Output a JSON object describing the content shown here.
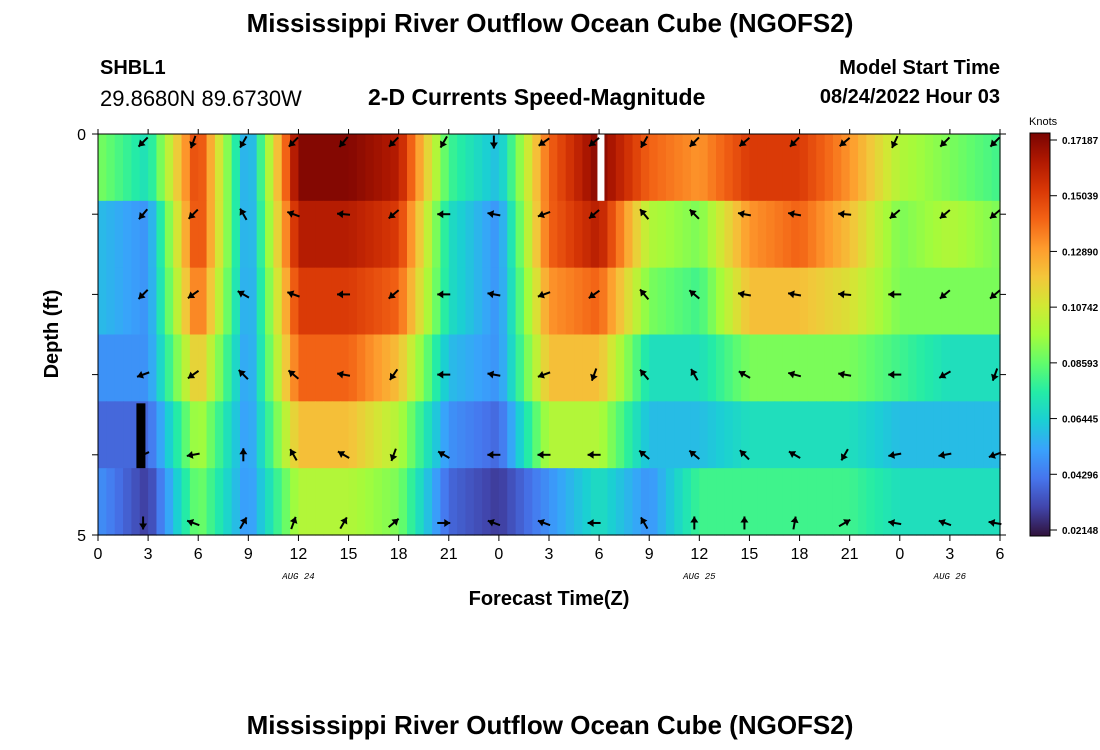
{
  "header": {
    "title": "Mississippi River Outflow Ocean Cube (NGOFS2)",
    "station_id": "SHBL1",
    "station_coords": "29.8680N  89.6730W",
    "plot_subtitle": "2-D Currents Speed-Magnitude",
    "model_start_label": "Model Start Time",
    "model_start_value": "08/24/2022 Hour 03"
  },
  "footer": {
    "title": "Mississippi River Outflow Ocean Cube (NGOFS2)"
  },
  "chart_data": {
    "type": "heatmap",
    "xlabel": "Forecast Time(Z)",
    "ylabel": "Depth (ft)",
    "x_ticks": [
      "0",
      "3",
      "6",
      "9",
      "12",
      "15",
      "18",
      "21",
      "0",
      "3",
      "6",
      "9",
      "12",
      "15",
      "18",
      "21",
      "0",
      "3",
      "6"
    ],
    "date_labels": [
      {
        "label": "AUG 24",
        "hour": 12
      },
      {
        "label": "AUG 25",
        "hour": 36
      },
      {
        "label": "AUG 26",
        "hour": 51
      }
    ],
    "y_ticks": [
      "0",
      "5"
    ],
    "ylim": [
      0,
      5
    ],
    "xlim": [
      0,
      54
    ],
    "colorbar": {
      "units": "Knots",
      "ticks": [
        "0.17187",
        "0.15039",
        "0.12890",
        "0.10742",
        "0.08593",
        "0.06445",
        "0.04296",
        "0.02148"
      ],
      "min": 0.02148,
      "max": 0.17187,
      "colors": [
        "#30123b",
        "#4145ab",
        "#4675ed",
        "#39a2fc",
        "#1bcfd4",
        "#24eca6",
        "#61fc6c",
        "#a4fc3b",
        "#d1e834",
        "#f3c63a",
        "#fe9b2d",
        "#f36315",
        "#d93806",
        "#b11901",
        "#7a0402"
      ]
    },
    "depth_levels": [
      0,
      1,
      2,
      3,
      4,
      5
    ],
    "series": [
      {
        "depth": 0,
        "hours": [
          0,
          3,
          6,
          9,
          12,
          15,
          18,
          21,
          24,
          27,
          30,
          33,
          36,
          39,
          42,
          45,
          48,
          51,
          54
        ],
        "speed": [
          0.09,
          0.07,
          0.15,
          0.05,
          0.17,
          0.17,
          0.16,
          0.08,
          0.06,
          0.14,
          0.17,
          0.14,
          0.13,
          0.15,
          0.15,
          0.13,
          0.1,
          0.09,
          0.08
        ]
      },
      {
        "depth": 1,
        "hours": [
          0,
          3,
          6,
          9,
          12,
          15,
          18,
          21,
          24,
          27,
          30,
          33,
          36,
          39,
          42,
          45,
          48,
          51,
          54
        ],
        "speed": [
          0.06,
          0.05,
          0.15,
          0.05,
          0.16,
          0.16,
          0.15,
          0.07,
          0.05,
          0.14,
          0.16,
          0.1,
          0.09,
          0.13,
          0.14,
          0.12,
          0.09,
          0.1,
          0.09
        ]
      },
      {
        "depth": 2,
        "hours": [
          0,
          3,
          6,
          9,
          12,
          15,
          18,
          21,
          24,
          27,
          30,
          33,
          36,
          39,
          42,
          45,
          48,
          51,
          54
        ],
        "speed": [
          0.06,
          0.05,
          0.14,
          0.05,
          0.15,
          0.15,
          0.14,
          0.07,
          0.05,
          0.13,
          0.14,
          0.09,
          0.08,
          0.12,
          0.12,
          0.11,
          0.09,
          0.09,
          0.09
        ]
      },
      {
        "depth": 3,
        "hours": [
          0,
          3,
          6,
          9,
          12,
          15,
          18,
          21,
          24,
          27,
          30,
          33,
          36,
          39,
          42,
          45,
          48,
          51,
          54
        ],
        "speed": [
          0.05,
          0.05,
          0.12,
          0.05,
          0.14,
          0.14,
          0.12,
          0.06,
          0.05,
          0.12,
          0.12,
          0.07,
          0.07,
          0.09,
          0.09,
          0.09,
          0.08,
          0.07,
          0.07
        ]
      },
      {
        "depth": 4,
        "hours": [
          0,
          3,
          6,
          9,
          12,
          15,
          18,
          21,
          24,
          27,
          30,
          33,
          36,
          39,
          42,
          45,
          48,
          51,
          54
        ],
        "speed": [
          0.04,
          0.04,
          0.1,
          0.05,
          0.12,
          0.12,
          0.1,
          0.05,
          0.04,
          0.1,
          0.1,
          0.06,
          0.06,
          0.07,
          0.07,
          0.07,
          0.06,
          0.06,
          0.06
        ]
      },
      {
        "depth": 5,
        "hours": [
          0,
          3,
          6,
          9,
          12,
          15,
          18,
          21,
          24,
          27,
          30,
          33,
          36,
          39,
          42,
          45,
          48,
          51,
          54
        ],
        "speed": [
          0.05,
          0.03,
          0.09,
          0.05,
          0.1,
          0.1,
          0.09,
          0.04,
          0.03,
          0.05,
          0.07,
          0.05,
          0.08,
          0.08,
          0.08,
          0.08,
          0.07,
          0.07,
          0.07
        ]
      }
    ],
    "arrows": [
      {
        "depth": 0.1,
        "hours": [
          2.7,
          5.7,
          8.7,
          11.7,
          14.7,
          17.7,
          20.7,
          23.7,
          26.7,
          29.7,
          32.7,
          35.7,
          38.7,
          41.7,
          44.7,
          47.7,
          50.7,
          53.7
        ],
        "dir_deg": [
          225,
          200,
          210,
          225,
          220,
          225,
          210,
          180,
          235,
          230,
          210,
          225,
          230,
          225,
          230,
          205,
          225,
          225
        ]
      },
      {
        "depth": 1.0,
        "hours": [
          2.7,
          5.7,
          8.7,
          11.7,
          14.7,
          17.7,
          20.7,
          23.7,
          26.7,
          29.7,
          32.7,
          35.7,
          38.7,
          41.7,
          44.7,
          47.7,
          50.7,
          53.7
        ],
        "dir_deg": [
          220,
          225,
          330,
          290,
          275,
          230,
          270,
          280,
          250,
          230,
          320,
          315,
          280,
          280,
          275,
          230,
          230,
          230
        ]
      },
      {
        "depth": 2.0,
        "hours": [
          2.7,
          5.7,
          8.7,
          11.7,
          14.7,
          17.7,
          20.7,
          23.7,
          26.7,
          29.7,
          32.7,
          35.7,
          38.7,
          41.7,
          44.7,
          47.7,
          50.7,
          53.7
        ],
        "dir_deg": [
          225,
          235,
          300,
          290,
          270,
          230,
          270,
          280,
          250,
          235,
          320,
          310,
          280,
          280,
          275,
          270,
          230,
          230
        ]
      },
      {
        "depth": 3.0,
        "hours": [
          2.7,
          5.7,
          8.7,
          11.7,
          14.7,
          17.7,
          20.7,
          23.7,
          26.7,
          29.7,
          32.7,
          35.7,
          38.7,
          41.7,
          44.7,
          47.7,
          50.7,
          53.7
        ],
        "dir_deg": [
          250,
          235,
          315,
          310,
          280,
          215,
          270,
          280,
          250,
          200,
          320,
          330,
          300,
          285,
          280,
          270,
          240,
          200
        ]
      },
      {
        "depth": 4.0,
        "hours": [
          2.7,
          5.7,
          8.7,
          11.7,
          14.7,
          17.7,
          20.7,
          23.7,
          26.7,
          29.7,
          32.7,
          35.7,
          38.7,
          41.7,
          44.7,
          47.7,
          50.7,
          53.7
        ],
        "dir_deg": [
          245,
          260,
          0,
          330,
          300,
          200,
          300,
          270,
          270,
          270,
          310,
          310,
          315,
          300,
          210,
          260,
          260,
          250
        ]
      },
      {
        "depth": 4.85,
        "hours": [
          2.7,
          5.7,
          8.7,
          11.7,
          14.7,
          17.7,
          20.7,
          23.7,
          26.7,
          29.7,
          32.7,
          35.7,
          38.7,
          41.7,
          44.7,
          47.7,
          50.7,
          53.7
        ],
        "dir_deg": [
          180,
          290,
          30,
          20,
          30,
          50,
          90,
          290,
          290,
          270,
          330,
          0,
          0,
          10,
          60,
          280,
          290,
          280
        ]
      }
    ]
  }
}
